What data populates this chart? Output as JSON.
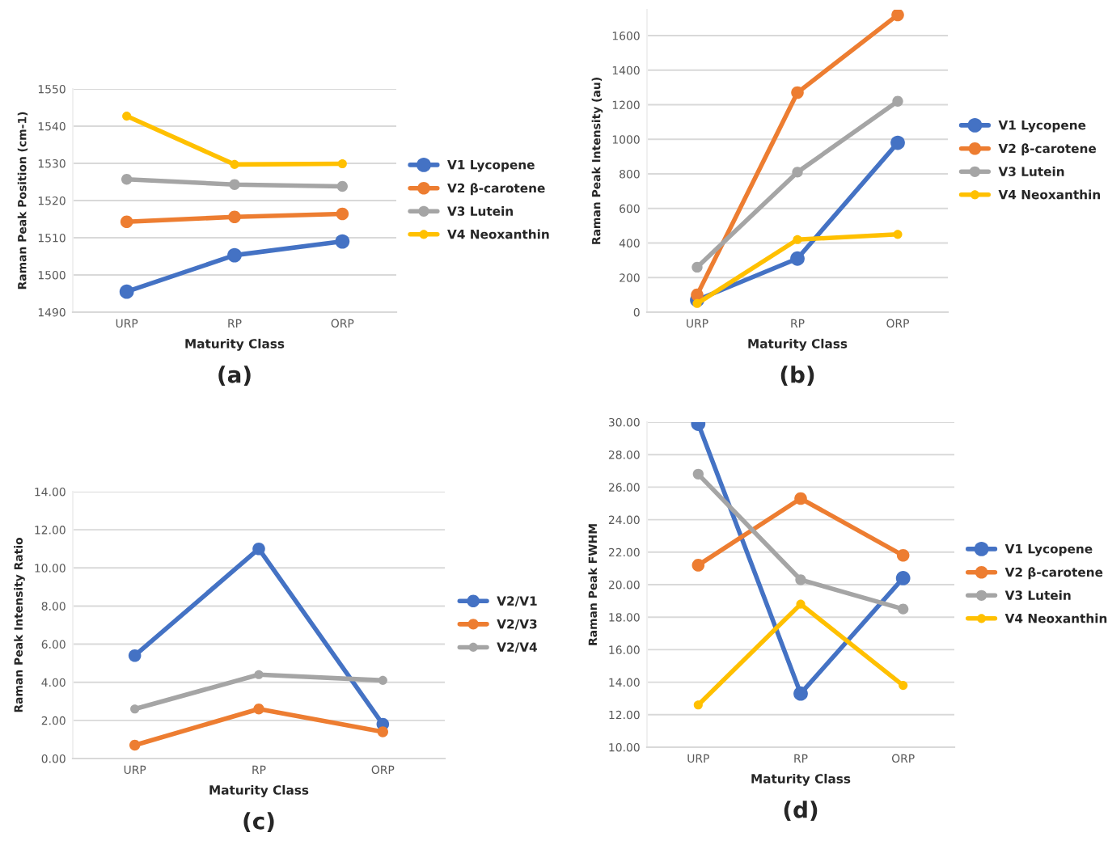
{
  "chart_data": [
    {
      "type": "line",
      "title": "(a)",
      "xlabel": "Maturity Class",
      "ylabel": "Raman Peak Position (cm-1)",
      "categories": [
        "URP",
        "RP",
        "ORP"
      ],
      "ylim": [
        1490,
        1550
      ],
      "yticks": [
        1490,
        1500,
        1510,
        1520,
        1530,
        1540,
        1550
      ],
      "grid": "y",
      "legend": "right",
      "marker": "circle",
      "series": [
        {
          "name": "V1 Lycopene",
          "color": "#4472c4",
          "values": [
            1495.5,
            1505.3,
            1509.0
          ]
        },
        {
          "name": "V2 β-carotene",
          "color": "#ed7d31",
          "values": [
            1514.3,
            1515.6,
            1516.4
          ]
        },
        {
          "name": "V3 Lutein",
          "color": "#a5a5a5",
          "values": [
            1525.7,
            1524.3,
            1523.8
          ]
        },
        {
          "name": "V4 Neoxanthin",
          "color": "#ffc000",
          "values": [
            1542.7,
            1529.7,
            1529.9
          ]
        }
      ]
    },
    {
      "type": "line",
      "title": "(b)",
      "xlabel": "Maturity Class",
      "ylabel": "Raman Peak Intensity (au)",
      "categories": [
        "URP",
        "RP",
        "ORP"
      ],
      "ylim": [
        0,
        1750
      ],
      "yticks": [
        0,
        200,
        400,
        600,
        800,
        1000,
        1200,
        1400,
        1600
      ],
      "grid": "y",
      "legend": "right",
      "marker": "circle",
      "series": [
        {
          "name": "V1 Lycopene",
          "color": "#4472c4",
          "values": [
            70,
            310,
            980
          ]
        },
        {
          "name": "V2 β-carotene",
          "color": "#ed7d31",
          "values": [
            100,
            1270,
            1720
          ]
        },
        {
          "name": "V3 Lutein",
          "color": "#a5a5a5",
          "values": [
            260,
            810,
            1220
          ]
        },
        {
          "name": "V4 Neoxanthin",
          "color": "#ffc000",
          "values": [
            50,
            420,
            450
          ]
        }
      ]
    },
    {
      "type": "line",
      "title": "(c)",
      "xlabel": "Maturity Class",
      "ylabel": "Raman Peak Intensity Ratio",
      "categories": [
        "URP",
        "RP",
        "ORP"
      ],
      "ylim": [
        0,
        14
      ],
      "yticks": [
        {
          "value": 0,
          "label": "0.00"
        },
        {
          "value": 2,
          "label": "2.00"
        },
        {
          "value": 4,
          "label": "4.00"
        },
        {
          "value": 6,
          "label": "6.00"
        },
        {
          "value": 8,
          "label": "8.00"
        },
        {
          "value": 10,
          "label": "10.00"
        },
        {
          "value": 12,
          "label": "12.00"
        },
        {
          "value": 14,
          "label": "14.00"
        }
      ],
      "grid": "y",
      "legend": "right",
      "marker": "circle",
      "series": [
        {
          "name": "V2/V1",
          "color": "#4472c4",
          "values": [
            5.4,
            11.0,
            1.8
          ]
        },
        {
          "name": "V2/V3",
          "color": "#ed7d31",
          "values": [
            0.7,
            2.6,
            1.4
          ]
        },
        {
          "name": "V2/V4",
          "color": "#a5a5a5",
          "values": [
            2.6,
            4.4,
            4.1
          ]
        }
      ]
    },
    {
      "type": "line",
      "title": "(d)",
      "xlabel": "Maturity Class",
      "ylabel": "Raman Peak FWHM",
      "categories": [
        "URP",
        "RP",
        "ORP"
      ],
      "ylim": [
        10,
        30
      ],
      "yticks": [
        {
          "value": 10,
          "label": "10.00"
        },
        {
          "value": 12,
          "label": "12.00"
        },
        {
          "value": 14,
          "label": "14.00"
        },
        {
          "value": 16,
          "label": "16.00"
        },
        {
          "value": 18,
          "label": "18.00"
        },
        {
          "value": 20,
          "label": "20.00"
        },
        {
          "value": 22,
          "label": "22.00"
        },
        {
          "value": 24,
          "label": "24.00"
        },
        {
          "value": 26,
          "label": "26.00"
        },
        {
          "value": 28,
          "label": "28.00"
        },
        {
          "value": 30,
          "label": "30.00"
        }
      ],
      "grid": "y",
      "legend": "right",
      "marker": "circle",
      "series": [
        {
          "name": "V1 Lycopene",
          "color": "#4472c4",
          "values": [
            29.9,
            13.3,
            20.4
          ]
        },
        {
          "name": "V2 β-carotene",
          "color": "#ed7d31",
          "values": [
            21.2,
            25.3,
            21.8
          ]
        },
        {
          "name": "V3 Lutein",
          "color": "#a5a5a5",
          "values": [
            26.8,
            20.3,
            18.5
          ]
        },
        {
          "name": "V4 Neoxanthin",
          "color": "#ffc000",
          "values": [
            12.6,
            18.8,
            13.8
          ]
        }
      ]
    }
  ]
}
